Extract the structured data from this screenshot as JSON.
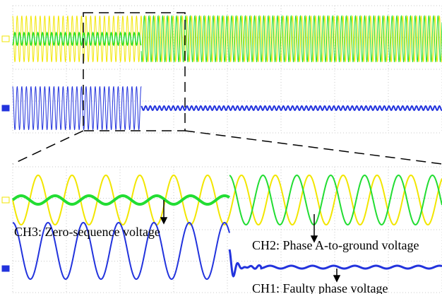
{
  "annotations": {
    "ch3": "CH3: Zero-sequence voltage",
    "ch2": "CH2: Phase A-to-ground voltage",
    "ch1": "CH1: Faulty phase voltage"
  }
}
